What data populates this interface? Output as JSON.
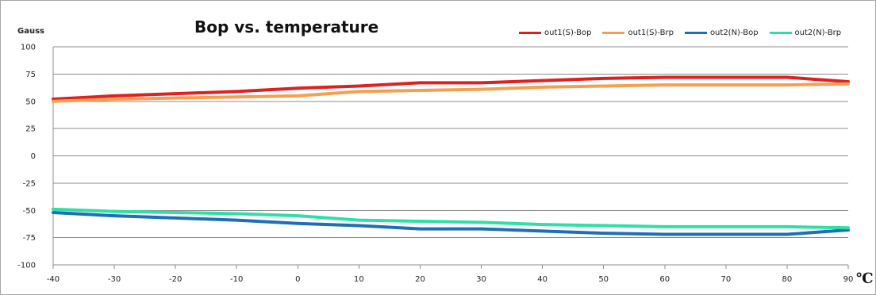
{
  "chart_data": {
    "type": "line",
    "title": "Bop vs. temperature",
    "ylabel": "Gauss",
    "xunit": "℃",
    "x": [
      -40,
      -30,
      -20,
      -10,
      0,
      10,
      20,
      30,
      40,
      50,
      60,
      70,
      80,
      90
    ],
    "xlim": [
      -40,
      90
    ],
    "ylim": [
      -100,
      100
    ],
    "yticks": [
      100,
      75,
      50,
      25,
      0,
      -25,
      -50,
      -75,
      -100
    ],
    "grid": true,
    "legend_position": "top-right",
    "series": [
      {
        "name": "out1(S)-Bop",
        "color": "#e02020",
        "values": [
          52,
          55,
          57,
          59,
          62,
          64,
          67,
          67,
          69,
          71,
          72,
          72,
          72,
          68
        ]
      },
      {
        "name": "out1(S)-Brp",
        "color": "#f5a050",
        "values": [
          50,
          52,
          53,
          54,
          55,
          59,
          60,
          61,
          63,
          64,
          65,
          65,
          65,
          66
        ]
      },
      {
        "name": "out2(N)-Bop",
        "color": "#1f6fb4",
        "values": [
          -52,
          -55,
          -57,
          -59,
          -62,
          -64,
          -67,
          -67,
          -69,
          -71,
          -72,
          -72,
          -72,
          -68
        ]
      },
      {
        "name": "out2(N)-Brp",
        "color": "#2ee0a8",
        "values": [
          -49,
          -51,
          -52,
          -53,
          -55,
          -59,
          -60,
          -61,
          -63,
          -64,
          -65,
          -65,
          -65,
          -66
        ]
      }
    ]
  }
}
